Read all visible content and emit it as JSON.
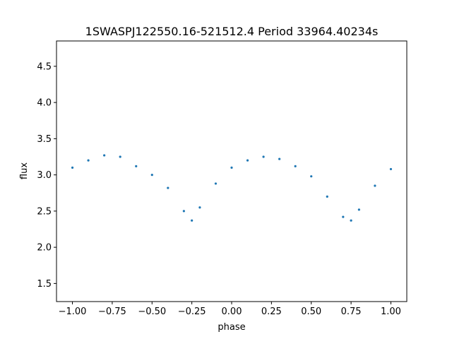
{
  "chart_data": {
    "type": "scatter",
    "title": "1SWASPJ122550.16-521512.4 Period 33964.40234s",
    "xlabel": "phase",
    "ylabel": "flux",
    "xlim": [
      -1.1,
      1.1
    ],
    "ylim": [
      1.25,
      4.85
    ],
    "x_ticks": [
      -1.0,
      -0.75,
      -0.5,
      -0.25,
      0.0,
      0.25,
      0.5,
      0.75,
      1.0
    ],
    "x_tick_labels": [
      "−1.00",
      "−0.75",
      "−0.50",
      "−0.25",
      "0.00",
      "0.25",
      "0.50",
      "0.75",
      "1.00"
    ],
    "y_ticks": [
      1.5,
      2.0,
      2.5,
      3.0,
      3.5,
      4.0,
      4.5
    ],
    "y_tick_labels": [
      "1.5",
      "2.0",
      "2.5",
      "3.0",
      "3.5",
      "4.0",
      "4.5"
    ],
    "grid": false,
    "marker_color": "#1f77b4",
    "series": [
      {
        "x": [
          -1.0,
          -0.9,
          -0.8,
          -0.7,
          -0.6,
          -0.5,
          -0.4,
          -0.3,
          -0.25,
          -0.2,
          -0.1,
          0.0,
          0.1,
          0.2,
          0.3,
          0.4,
          0.5,
          0.6,
          0.7,
          0.75,
          0.8,
          0.9,
          1.0
        ],
        "y": [
          3.1,
          3.2,
          3.27,
          3.25,
          3.12,
          3.0,
          2.82,
          2.5,
          2.37,
          2.55,
          2.88,
          3.1,
          3.2,
          3.25,
          3.22,
          3.12,
          2.98,
          2.7,
          2.42,
          2.37,
          2.52,
          2.85,
          3.08
        ]
      }
    ]
  }
}
